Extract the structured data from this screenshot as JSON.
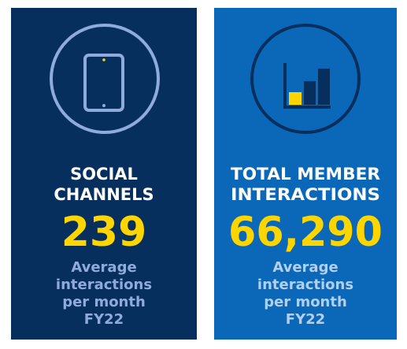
{
  "cards": [
    {
      "title_lines": [
        "SOCIAL",
        "CHANNELS"
      ],
      "value": "239",
      "description_lines": [
        "Average",
        "interactions",
        "per month",
        "FY22"
      ]
    },
    {
      "title_lines": [
        "TOTAL MEMBER",
        "INTERACTIONS"
      ],
      "value": "66,290",
      "description_lines": [
        "Average",
        "interactions",
        "per month",
        "FY22"
      ]
    }
  ]
}
